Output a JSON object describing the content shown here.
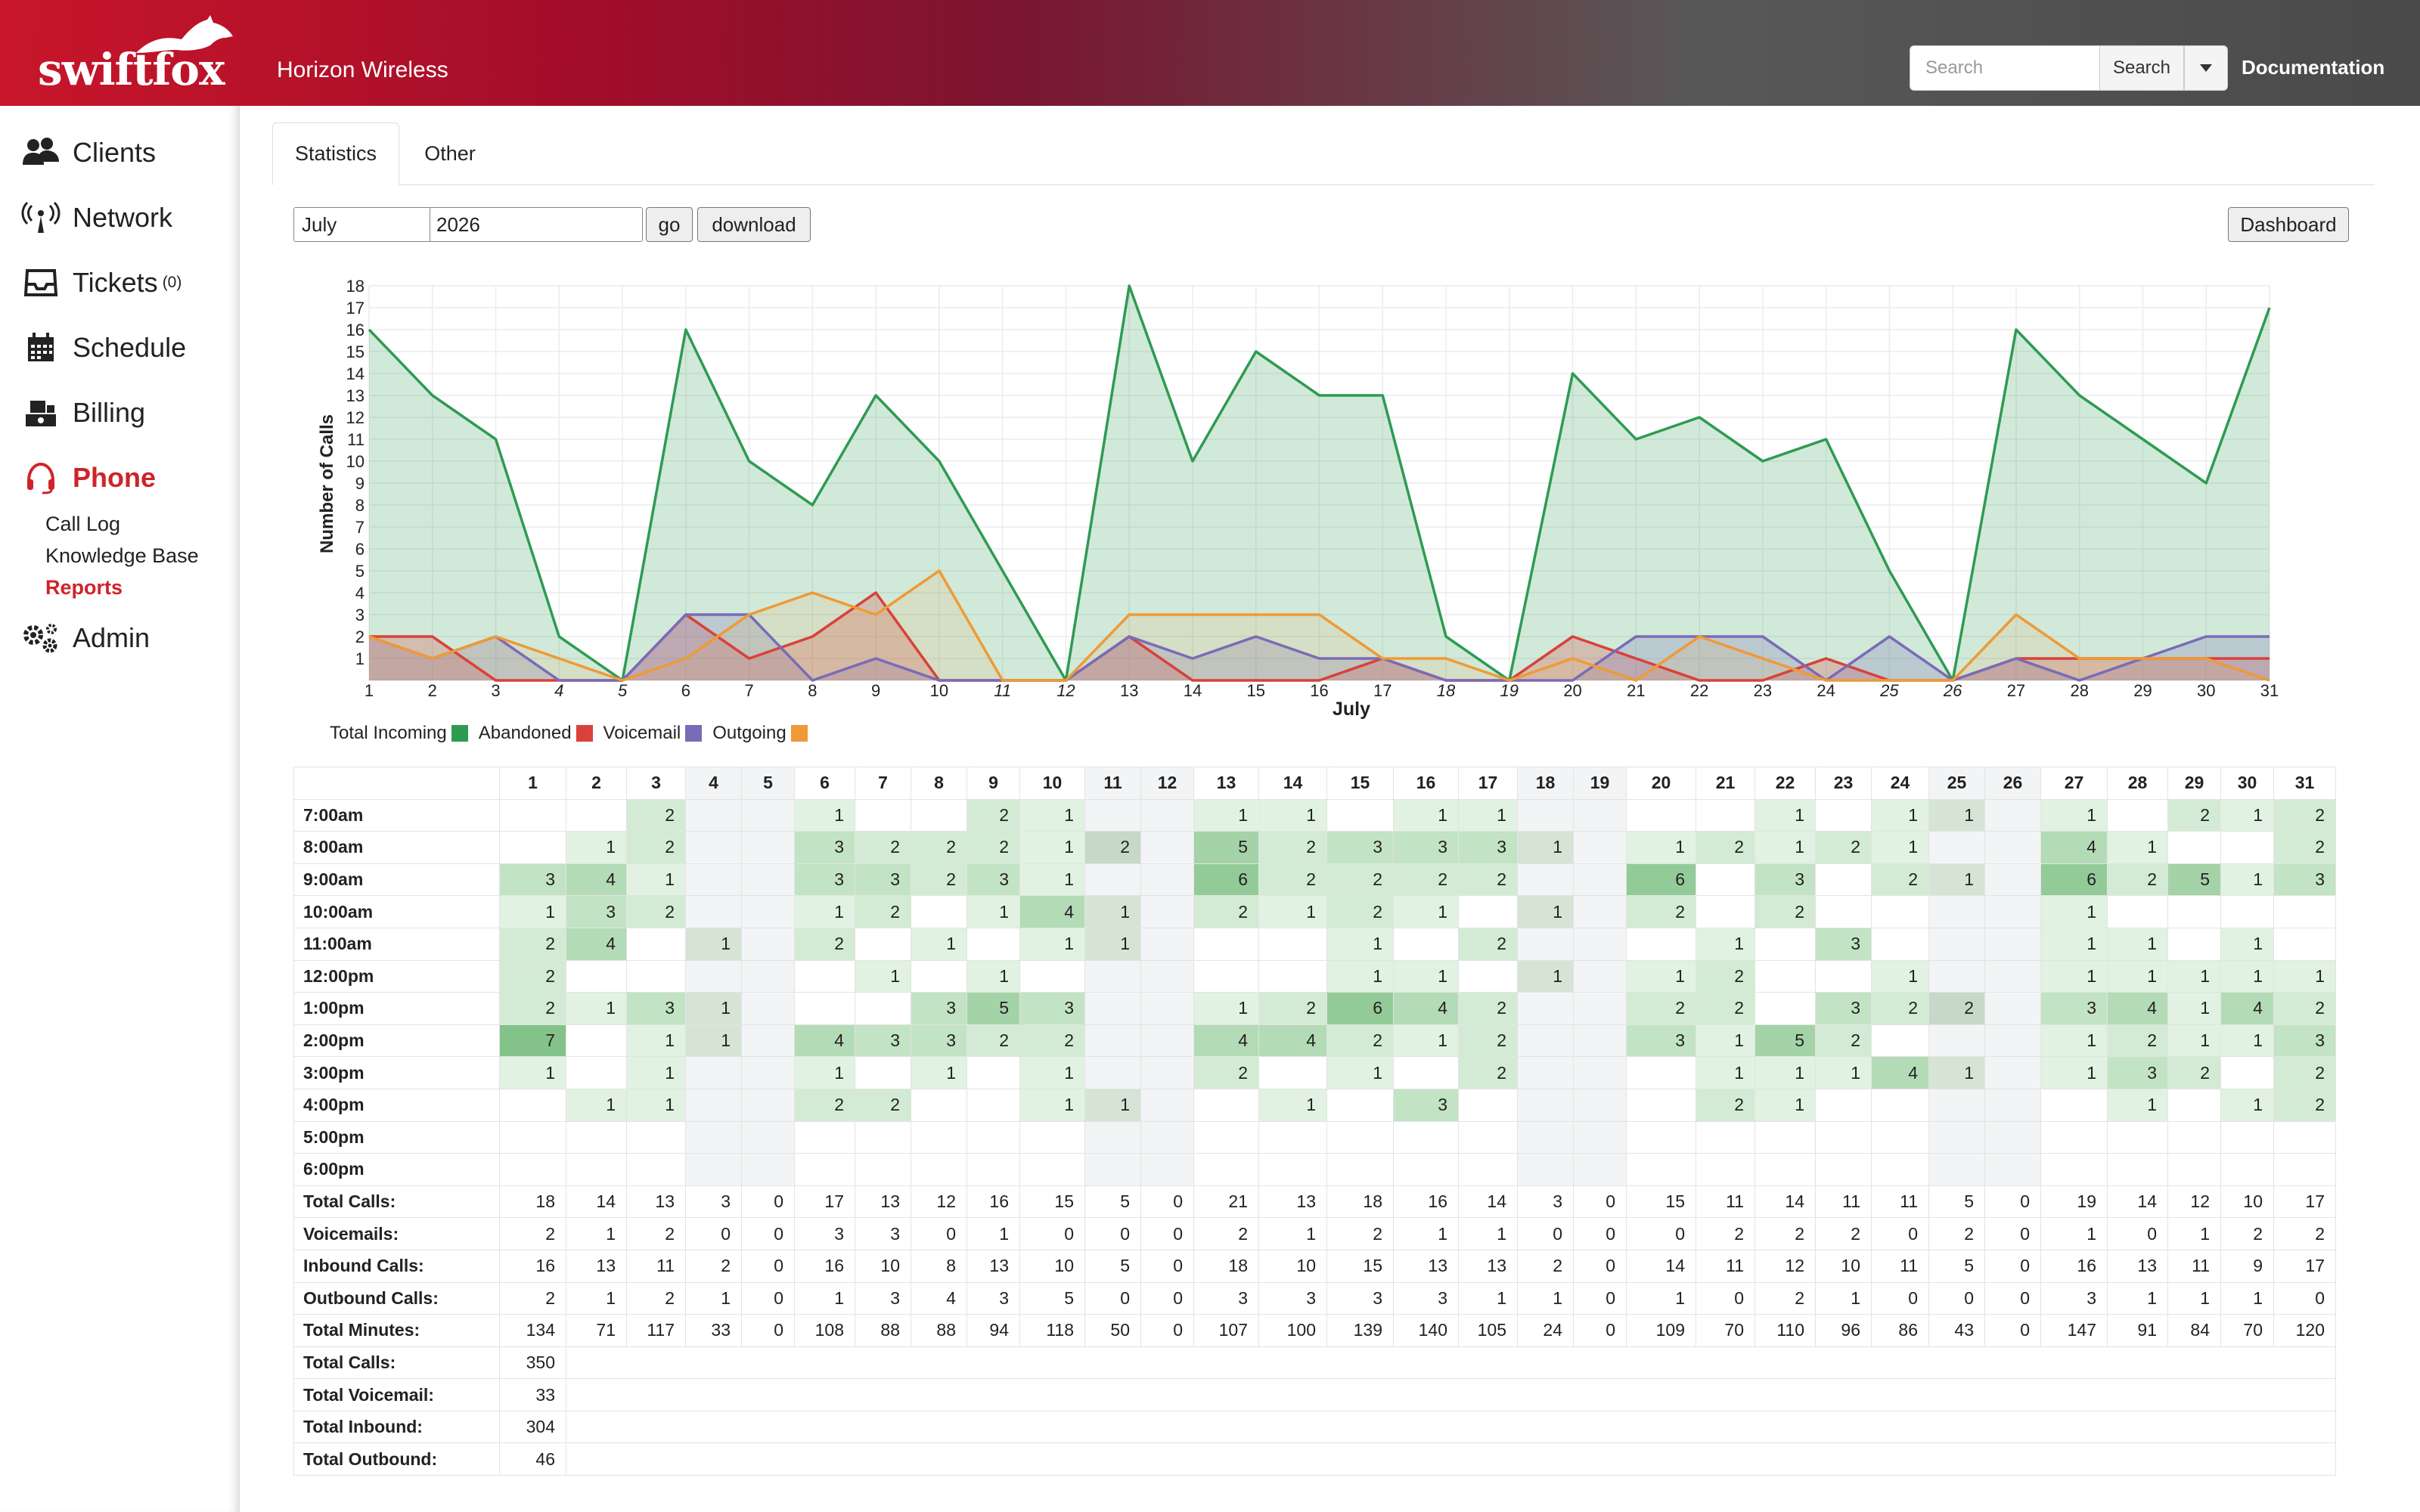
{
  "header": {
    "logo_text": "swiftfox",
    "company": "Horizon Wireless",
    "search_placeholder": "Search",
    "search_label": "Search",
    "documentation_label": "Documentation"
  },
  "sidebar": {
    "items": [
      {
        "label": "Clients",
        "icon": "users-icon"
      },
      {
        "label": "Network",
        "icon": "antenna-icon"
      },
      {
        "label": "Tickets",
        "count": "(0)",
        "icon": "inbox-icon"
      },
      {
        "label": "Schedule",
        "icon": "calendar-icon"
      },
      {
        "label": "Billing",
        "icon": "money-icon"
      },
      {
        "label": "Phone",
        "icon": "headset-icon",
        "active": true
      },
      {
        "label": "Admin",
        "icon": "gears-icon"
      }
    ],
    "phone_sub": [
      "Call Log",
      "Knowledge Base",
      "Reports"
    ],
    "active_sub": "Reports"
  },
  "tabs": [
    "Statistics",
    "Other"
  ],
  "controls": {
    "month": "July",
    "year": "2026",
    "go_label": "go",
    "download_label": "download",
    "dashboard_label": "Dashboard"
  },
  "colors": {
    "total": "#2e9b52",
    "abandoned": "#d9413a",
    "voicemail": "#7a6bb8",
    "outgoing": "#ef9a36",
    "accent": "#d0232a"
  },
  "chart_data": {
    "type": "area",
    "xlabel": "July",
    "ylabel": "Number of Calls",
    "ylim": [
      0,
      18
    ],
    "x": [
      1,
      2,
      3,
      4,
      5,
      6,
      7,
      8,
      9,
      10,
      11,
      12,
      13,
      14,
      15,
      16,
      17,
      18,
      19,
      20,
      21,
      22,
      23,
      24,
      25,
      26,
      27,
      28,
      29,
      30,
      31
    ],
    "weekend_days": [
      4,
      5,
      11,
      12,
      18,
      19,
      25,
      26
    ],
    "series": [
      {
        "name": "Total Incoming",
        "values": [
          16,
          13,
          11,
          2,
          0,
          16,
          10,
          8,
          13,
          10,
          5,
          0,
          18,
          10,
          15,
          13,
          13,
          2,
          0,
          14,
          11,
          12,
          10,
          11,
          5,
          0,
          16,
          13,
          11,
          9,
          17
        ]
      },
      {
        "name": "Abandoned",
        "values": [
          2,
          2,
          0,
          0,
          0,
          3,
          1,
          2,
          4,
          0,
          0,
          0,
          2,
          0,
          0,
          0,
          1,
          0,
          0,
          2,
          1,
          0,
          0,
          1,
          0,
          0,
          1,
          1,
          1,
          1,
          1
        ]
      },
      {
        "name": "Voicemail",
        "values": [
          2,
          1,
          2,
          0,
          0,
          3,
          3,
          0,
          1,
          0,
          0,
          0,
          2,
          1,
          2,
          1,
          1,
          0,
          0,
          0,
          2,
          2,
          2,
          0,
          2,
          0,
          1,
          0,
          1,
          2,
          2
        ]
      },
      {
        "name": "Outgoing",
        "values": [
          2,
          1,
          2,
          1,
          0,
          1,
          3,
          4,
          3,
          5,
          0,
          0,
          3,
          3,
          3,
          3,
          1,
          1,
          0,
          1,
          0,
          2,
          1,
          0,
          0,
          0,
          3,
          1,
          1,
          1,
          0
        ]
      }
    ]
  },
  "table": {
    "days": [
      "1",
      "2",
      "3",
      "4",
      "5",
      "6",
      "7",
      "8",
      "9",
      "10",
      "11",
      "12",
      "13",
      "14",
      "15",
      "16",
      "17",
      "18",
      "19",
      "20",
      "21",
      "22",
      "23",
      "24",
      "25",
      "26",
      "27",
      "28",
      "29",
      "30",
      "31"
    ],
    "hours": [
      {
        "label": "7:00am",
        "values": [
          "",
          "",
          "2",
          "",
          "",
          "1",
          "",
          "",
          "2",
          "1",
          "",
          "",
          "1",
          "1",
          "",
          "1",
          "1",
          "",
          "",
          "",
          "",
          "1",
          "",
          "1",
          "1",
          "",
          "1",
          "",
          "2",
          "1",
          "2"
        ]
      },
      {
        "label": "8:00am",
        "values": [
          "",
          "1",
          "2",
          "",
          "",
          "3",
          "2",
          "2",
          "2",
          "1",
          "2",
          "",
          "5",
          "2",
          "3",
          "3",
          "3",
          "1",
          "",
          "1",
          "2",
          "1",
          "2",
          "1",
          "",
          "",
          "4",
          "1",
          "",
          "",
          "2"
        ]
      },
      {
        "label": "9:00am",
        "values": [
          "3",
          "4",
          "1",
          "",
          "",
          "3",
          "3",
          "2",
          "3",
          "1",
          "",
          "",
          "6",
          "2",
          "2",
          "2",
          "2",
          "",
          "",
          "6",
          "",
          "3",
          "",
          "2",
          "1",
          "",
          "6",
          "2",
          "5",
          "1",
          "3"
        ]
      },
      {
        "label": "10:00am",
        "values": [
          "1",
          "3",
          "2",
          "",
          "",
          "1",
          "2",
          "",
          "1",
          "4",
          "1",
          "",
          "2",
          "1",
          "2",
          "1",
          "",
          "1",
          "",
          "2",
          "",
          "2",
          "",
          "",
          "",
          "",
          "1",
          "",
          "",
          "",
          ""
        ]
      },
      {
        "label": "11:00am",
        "values": [
          "2",
          "4",
          "",
          "1",
          "",
          "2",
          "",
          "1",
          "",
          "1",
          "1",
          "",
          "",
          "",
          "1",
          "",
          "2",
          "",
          "",
          "",
          "1",
          "",
          "3",
          "",
          "",
          "",
          "1",
          "1",
          "",
          "1",
          ""
        ]
      },
      {
        "label": "12:00pm",
        "values": [
          "2",
          "",
          "",
          "",
          "",
          "",
          "1",
          "",
          "1",
          "",
          "",
          "",
          "",
          "",
          "1",
          "1",
          "",
          "1",
          "",
          "1",
          "2",
          "",
          "",
          "1",
          "",
          "",
          "1",
          "1",
          "1",
          "1",
          "1"
        ]
      },
      {
        "label": "1:00pm",
        "values": [
          "2",
          "1",
          "3",
          "1",
          "",
          "",
          "",
          "3",
          "5",
          "3",
          "",
          "",
          "1",
          "2",
          "6",
          "4",
          "2",
          "",
          "",
          "2",
          "2",
          "",
          "3",
          "2",
          "2",
          "",
          "3",
          "4",
          "1",
          "4",
          "2"
        ]
      },
      {
        "label": "2:00pm",
        "values": [
          "7",
          "",
          "1",
          "1",
          "",
          "4",
          "3",
          "3",
          "2",
          "2",
          "",
          "",
          "4",
          "4",
          "2",
          "1",
          "2",
          "",
          "",
          "3",
          "1",
          "5",
          "2",
          "",
          "",
          "",
          "1",
          "2",
          "1",
          "1",
          "3"
        ]
      },
      {
        "label": "3:00pm",
        "values": [
          "1",
          "",
          "1",
          "",
          "",
          "1",
          "",
          "1",
          "",
          "1",
          "",
          "",
          "2",
          "",
          "1",
          "",
          "2",
          "",
          "",
          "",
          "1",
          "1",
          "1",
          "4",
          "1",
          "",
          "1",
          "3",
          "2",
          "",
          "2"
        ]
      },
      {
        "label": "4:00pm",
        "values": [
          "",
          "1",
          "1",
          "",
          "",
          "2",
          "2",
          "",
          "",
          "1",
          "1",
          "",
          "",
          "1",
          "",
          "3",
          "",
          "",
          "",
          "",
          "2",
          "1",
          "",
          "",
          "",
          "",
          "",
          "1",
          "",
          "1",
          "2"
        ]
      },
      {
        "label": "5:00pm",
        "values": [
          "",
          "",
          "",
          "",
          "",
          "",
          "",
          "",
          "",
          "",
          "",
          "",
          "",
          "",
          "",
          "",
          "",
          "",
          "",
          "",
          "",
          "",
          "",
          "",
          "",
          "",
          "",
          "",
          "",
          "",
          ""
        ]
      },
      {
        "label": "6:00pm",
        "values": [
          "",
          "",
          "",
          "",
          "",
          "",
          "",
          "",
          "",
          "",
          "",
          "",
          "",
          "",
          "",
          "",
          "",
          "",
          "",
          "",
          "",
          "",
          "",
          "",
          "",
          "",
          "",
          "",
          "",
          "",
          ""
        ]
      }
    ],
    "summary": [
      {
        "label": "Total Calls:",
        "values": [
          "18",
          "14",
          "13",
          "3",
          "0",
          "17",
          "13",
          "12",
          "16",
          "15",
          "5",
          "0",
          "21",
          "13",
          "18",
          "16",
          "14",
          "3",
          "0",
          "15",
          "11",
          "14",
          "11",
          "11",
          "5",
          "0",
          "19",
          "14",
          "12",
          "10",
          "17"
        ]
      },
      {
        "label": "Voicemails:",
        "values": [
          "2",
          "1",
          "2",
          "0",
          "0",
          "3",
          "3",
          "0",
          "1",
          "0",
          "0",
          "0",
          "2",
          "1",
          "2",
          "1",
          "1",
          "0",
          "0",
          "0",
          "2",
          "2",
          "2",
          "0",
          "2",
          "0",
          "1",
          "0",
          "1",
          "2",
          "2"
        ]
      },
      {
        "label": "Inbound Calls:",
        "values": [
          "16",
          "13",
          "11",
          "2",
          "0",
          "16",
          "10",
          "8",
          "13",
          "10",
          "5",
          "0",
          "18",
          "10",
          "15",
          "13",
          "13",
          "2",
          "0",
          "14",
          "11",
          "12",
          "10",
          "11",
          "5",
          "0",
          "16",
          "13",
          "11",
          "9",
          "17"
        ]
      },
      {
        "label": "Outbound Calls:",
        "values": [
          "2",
          "1",
          "2",
          "1",
          "0",
          "1",
          "3",
          "4",
          "3",
          "5",
          "0",
          "0",
          "3",
          "3",
          "3",
          "3",
          "1",
          "1",
          "0",
          "1",
          "0",
          "2",
          "1",
          "0",
          "0",
          "0",
          "3",
          "1",
          "1",
          "1",
          "0"
        ]
      },
      {
        "label": "Total Minutes:",
        "values": [
          "134",
          "71",
          "117",
          "33",
          "0",
          "108",
          "88",
          "88",
          "94",
          "118",
          "50",
          "0",
          "107",
          "100",
          "139",
          "140",
          "105",
          "24",
          "0",
          "109",
          "70",
          "110",
          "96",
          "86",
          "43",
          "0",
          "147",
          "91",
          "84",
          "70",
          "120"
        ]
      }
    ],
    "totals": [
      {
        "label": "Total Calls:",
        "value": "350"
      },
      {
        "label": "Total Voicemail:",
        "value": "33"
      },
      {
        "label": "Total Inbound:",
        "value": "304"
      },
      {
        "label": "Total Outbound:",
        "value": "46"
      }
    ]
  }
}
